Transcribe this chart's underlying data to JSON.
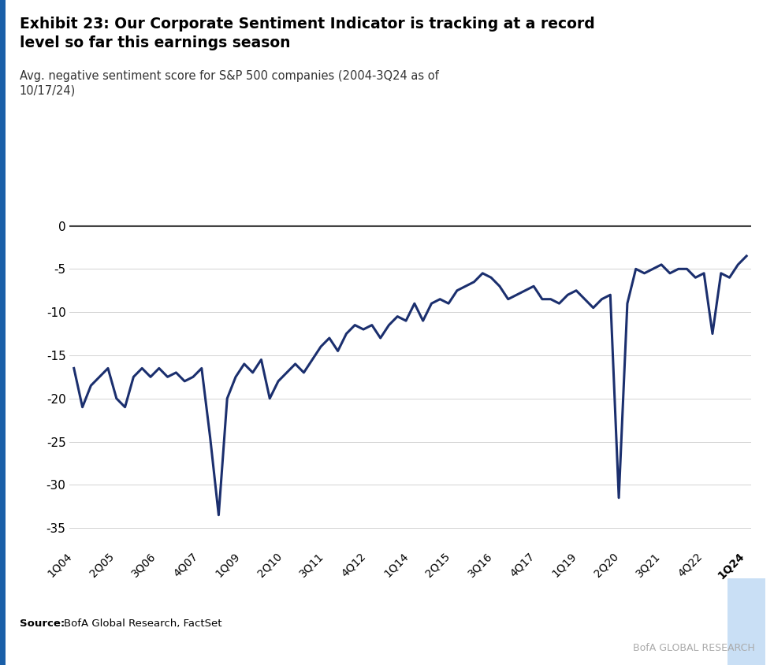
{
  "title_bold": "Exhibit 23: Our Corporate Sentiment Indicator is tracking at a record\nlevel so far this earnings season",
  "subtitle": "Avg. negative sentiment score for S&P 500 companies (2004-3Q24 as of\n10/17/24)",
  "source_bold": "Source:",
  "source_normal": "BofA Global Research, FactSet",
  "watermark": "BofA GLOBAL RESEARCH",
  "line_color": "#1b2f6e",
  "background_color": "#ffffff",
  "highlight_last_label_color": "#c9dff5",
  "border_color": "#1a5fa8",
  "x_labels": [
    "1Q04",
    "2Q05",
    "3Q06",
    "4Q07",
    "1Q09",
    "2Q10",
    "3Q11",
    "4Q12",
    "1Q14",
    "2Q15",
    "3Q16",
    "4Q17",
    "1Q19",
    "2Q20",
    "3Q21",
    "4Q22",
    "1Q24"
  ],
  "yticks": [
    0,
    -5,
    -10,
    -15,
    -20,
    -25,
    -30,
    -35
  ],
  "ylim": [
    -37,
    1.5
  ],
  "data_x": [
    0,
    1,
    2,
    3,
    4,
    5,
    6,
    7,
    8,
    9,
    10,
    11,
    12,
    13,
    14,
    15,
    16,
    17,
    18,
    19,
    20,
    21,
    22,
    23,
    24,
    25,
    26,
    27,
    28,
    29,
    30,
    31,
    32,
    33,
    34,
    35,
    36,
    37,
    38,
    39,
    40,
    41,
    42,
    43,
    44,
    45,
    46,
    47,
    48,
    49,
    50,
    51,
    52,
    53,
    54,
    55,
    56,
    57,
    58,
    59,
    60,
    61,
    62,
    63,
    64,
    65,
    66,
    67,
    68,
    69,
    70,
    71,
    72,
    73,
    74,
    75,
    76,
    77,
    78,
    79
  ],
  "data_y": [
    -16.5,
    -21.0,
    -18.5,
    -17.5,
    -16.5,
    -20.0,
    -21.0,
    -17.5,
    -16.5,
    -17.5,
    -16.5,
    -17.5,
    -17.0,
    -18.0,
    -17.5,
    -16.5,
    -24.5,
    -33.5,
    -20.0,
    -17.5,
    -16.0,
    -17.0,
    -15.5,
    -20.0,
    -18.0,
    -17.0,
    -16.0,
    -17.0,
    -15.5,
    -14.0,
    -13.0,
    -14.5,
    -12.5,
    -11.5,
    -12.0,
    -11.5,
    -13.0,
    -11.5,
    -10.5,
    -11.0,
    -9.0,
    -11.0,
    -9.0,
    -8.5,
    -9.0,
    -7.5,
    -7.0,
    -6.5,
    -5.5,
    -6.0,
    -7.0,
    -8.5,
    -8.0,
    -7.5,
    -7.0,
    -8.5,
    -8.5,
    -9.0,
    -8.0,
    -7.5,
    -8.5,
    -9.5,
    -8.5,
    -8.0,
    -31.5,
    -9.0,
    -5.0,
    -5.5,
    -5.0,
    -4.5,
    -5.5,
    -5.0,
    -5.0,
    -6.0,
    -5.5,
    -12.5,
    -5.5,
    -6.0,
    -4.5,
    -3.5
  ]
}
